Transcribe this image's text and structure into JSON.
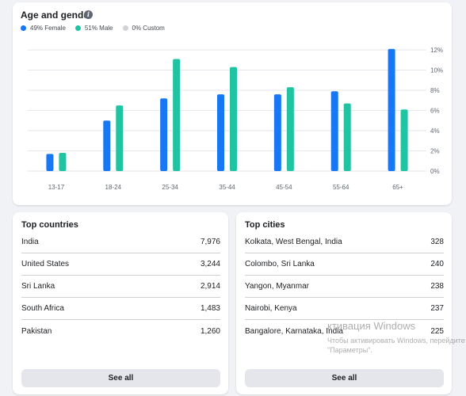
{
  "age_gender": {
    "title": "Age and gender",
    "legend": [
      {
        "label": "49% Female",
        "color": "#1877f2"
      },
      {
        "label": "51% Male",
        "color": "#20c4a2"
      },
      {
        "label": "0% Custom",
        "color": "#d0d2d6"
      }
    ]
  },
  "chart_data": {
    "type": "bar",
    "categories": [
      "13-17",
      "18-24",
      "25-34",
      "35-44",
      "45-54",
      "55-64",
      "65+"
    ],
    "series": [
      {
        "name": "Female",
        "color": "#1877f2",
        "values": [
          1.7,
          5.0,
          7.2,
          7.6,
          7.6,
          7.9,
          12.1
        ]
      },
      {
        "name": "Male",
        "color": "#20c4a2",
        "values": [
          1.8,
          6.5,
          11.1,
          10.3,
          8.3,
          6.7,
          6.1
        ]
      }
    ],
    "y_ticks": [
      "0%",
      "2%",
      "4%",
      "6%",
      "8%",
      "10%",
      "12%"
    ],
    "ylim": [
      0,
      12
    ],
    "grid": true
  },
  "top_countries": {
    "title": "Top countries",
    "rows": [
      {
        "name": "India",
        "value": "7,976"
      },
      {
        "name": "United States",
        "value": "3,244"
      },
      {
        "name": "Sri Lanka",
        "value": "2,914"
      },
      {
        "name": "South Africa",
        "value": "1,483"
      },
      {
        "name": "Pakistan",
        "value": "1,260"
      }
    ],
    "see_all": "See all"
  },
  "top_cities": {
    "title": "Top cities",
    "rows": [
      {
        "name": "Kolkata, West Bengal, India",
        "value": "328"
      },
      {
        "name": "Colombo, Sri Lanka",
        "value": "240"
      },
      {
        "name": "Yangon, Myanmar",
        "value": "238"
      },
      {
        "name": "Nairobi, Kenya",
        "value": "237"
      },
      {
        "name": "Bangalore, Karnataka, India",
        "value": "225"
      }
    ],
    "see_all": "See all"
  },
  "watermark": {
    "line1": "ктивация Windows",
    "line2": "Чтобы активировать Windows, перейдите",
    "line3": "\"Параметры\"."
  }
}
